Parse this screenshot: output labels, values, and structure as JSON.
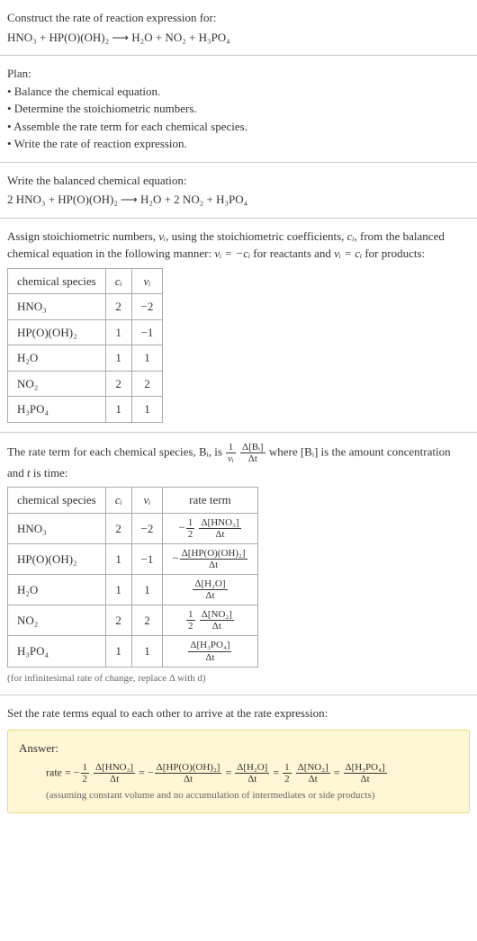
{
  "intro": {
    "line1": "Construct the rate of reaction expression for:",
    "equation": "HNO₃ + HP(O)(OH)₂  ⟶  H₂O + NO₂ + H₃PO₄"
  },
  "plan": {
    "title": "Plan:",
    "items": [
      "• Balance the chemical equation.",
      "• Determine the stoichiometric numbers.",
      "• Assemble the rate term for each chemical species.",
      "• Write the rate of reaction expression."
    ]
  },
  "balanced": {
    "title": "Write the balanced chemical equation:",
    "equation": "2 HNO₃ + HP(O)(OH)₂  ⟶  H₂O + 2 NO₂ + H₃PO₄"
  },
  "stoic_assign": {
    "text_before": "Assign stoichiometric numbers, ",
    "nu_i": "νᵢ",
    "text_mid1": ", using the stoichiometric coefficients, ",
    "c_i": "cᵢ",
    "text_mid2": ", from the balanced chemical equation in the following manner: ",
    "rel1": "νᵢ = −cᵢ",
    "text_mid3": " for reactants and ",
    "rel2": "νᵢ = cᵢ",
    "text_mid4": " for products:",
    "table": {
      "headers": [
        "chemical species",
        "cᵢ",
        "νᵢ"
      ],
      "rows": [
        [
          "HNO₃",
          "2",
          "−2"
        ],
        [
          "HP(O)(OH)₂",
          "1",
          "−1"
        ],
        [
          "H₂O",
          "1",
          "1"
        ],
        [
          "NO₂",
          "2",
          "2"
        ],
        [
          "H₃PO₄",
          "1",
          "1"
        ]
      ]
    }
  },
  "rate_term_intro": {
    "p1": "The rate term for each chemical species, Bᵢ, is ",
    "frac1_num": "1",
    "frac1_den": "νᵢ",
    "frac2_num": "Δ[Bᵢ]",
    "frac2_den": "Δt",
    "p2": " where [Bᵢ] is the amount concentration and ",
    "t": "t",
    "p3": " is time:",
    "table": {
      "headers": [
        "chemical species",
        "cᵢ",
        "νᵢ",
        "rate term"
      ],
      "rows": [
        {
          "sp": "HNO₃",
          "c": "2",
          "nu": "−2",
          "coef_num": "1",
          "coef_den": "2",
          "neg": "−",
          "dnum": "Δ[HNO₃]",
          "dden": "Δt"
        },
        {
          "sp": "HP(O)(OH)₂",
          "c": "1",
          "nu": "−1",
          "coef_num": "",
          "coef_den": "",
          "neg": "−",
          "dnum": "Δ[HP(O)(OH)₂]",
          "dden": "Δt"
        },
        {
          "sp": "H₂O",
          "c": "1",
          "nu": "1",
          "coef_num": "",
          "coef_den": "",
          "neg": "",
          "dnum": "Δ[H₂O]",
          "dden": "Δt"
        },
        {
          "sp": "NO₂",
          "c": "2",
          "nu": "2",
          "coef_num": "1",
          "coef_den": "2",
          "neg": "",
          "dnum": "Δ[NO₂]",
          "dden": "Δt"
        },
        {
          "sp": "H₃PO₄",
          "c": "1",
          "nu": "1",
          "coef_num": "",
          "coef_den": "",
          "neg": "",
          "dnum": "Δ[H₃PO₄]",
          "dden": "Δt"
        }
      ]
    },
    "note": "(for infinitesimal rate of change, replace Δ with d)"
  },
  "final": {
    "intro": "Set the rate terms equal to each other to arrive at the rate expression:",
    "answer_title": "Answer:",
    "rate_label": "rate = ",
    "terms": [
      {
        "neg": "−",
        "coef_num": "1",
        "coef_den": "2",
        "dnum": "Δ[HNO₃]",
        "dden": "Δt"
      },
      {
        "neg": "−",
        "coef_num": "",
        "coef_den": "",
        "dnum": "Δ[HP(O)(OH)₂]",
        "dden": "Δt"
      },
      {
        "neg": "",
        "coef_num": "",
        "coef_den": "",
        "dnum": "Δ[H₂O]",
        "dden": "Δt"
      },
      {
        "neg": "",
        "coef_num": "1",
        "coef_den": "2",
        "dnum": "Δ[NO₂]",
        "dden": "Δt"
      },
      {
        "neg": "",
        "coef_num": "",
        "coef_den": "",
        "dnum": "Δ[H₃PO₄]",
        "dden": "Δt"
      }
    ],
    "note": "(assuming constant volume and no accumulation of intermediates or side products)"
  },
  "colors": {
    "divider": "#cccccc",
    "table_border": "#aaaaaa",
    "note_text": "#666666",
    "answer_bg": "#fff6d5",
    "answer_border": "#e8d97a"
  }
}
